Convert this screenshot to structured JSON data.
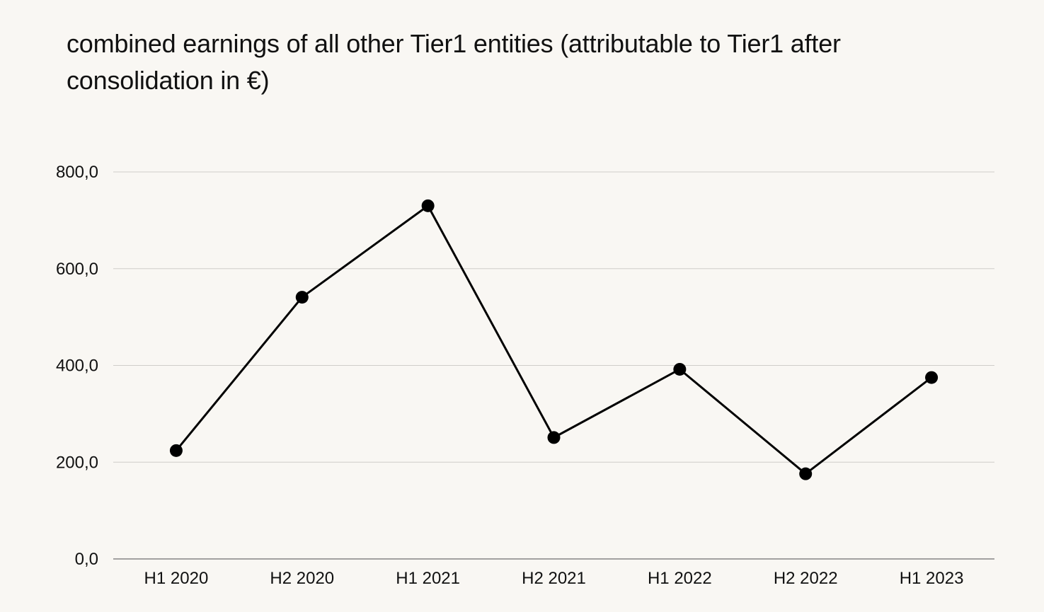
{
  "chart_data": {
    "type": "line",
    "title": "combined earnings of all other Tier1 entities (attributable to Tier1 after consolidation in €)",
    "xlabel": "",
    "ylabel": "",
    "categories": [
      "H1 2020",
      "H2 2020",
      "H1 2021",
      "H2 2021",
      "H1 2022",
      "H2 2022",
      "H1 2023"
    ],
    "series": [
      {
        "values": [
          224,
          541,
          730,
          251,
          392,
          176,
          375
        ]
      }
    ],
    "ylim": [
      0,
      800
    ],
    "yticks": [
      0,
      200,
      400,
      600,
      800
    ],
    "ytick_labels": [
      "0,0",
      "200,0",
      "400,0",
      "600,0",
      "800,0"
    ],
    "grid": true,
    "legend": "none",
    "colors": {
      "background": "#f9f7f3",
      "line": "#000000",
      "grid": "#cfcdc9",
      "axis": "#6e6e6e",
      "text": "#111111"
    }
  }
}
